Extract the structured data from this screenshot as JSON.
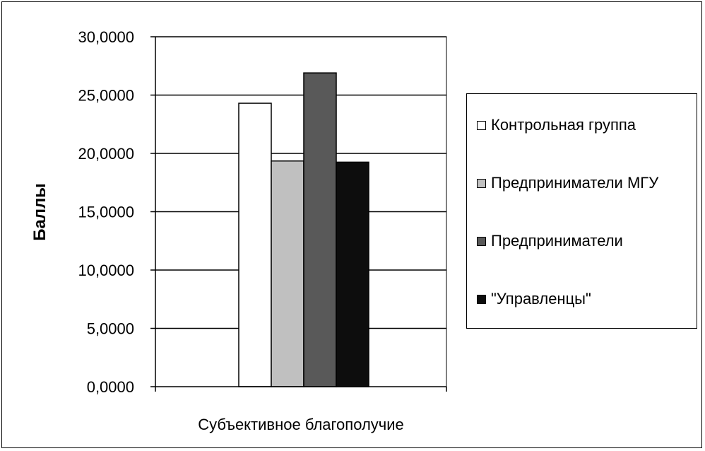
{
  "chart_data": {
    "type": "bar",
    "categories": [
      "Субъективное благополучие"
    ],
    "series": [
      {
        "name": "Контрольная группа",
        "values": [
          24.3
        ],
        "color": "#ffffff"
      },
      {
        "name": "Предприниматели МГУ",
        "values": [
          19.35
        ],
        "color": "#c0c0c0"
      },
      {
        "name": "Предприниматели",
        "values": [
          26.9
        ],
        "color": "#595959"
      },
      {
        "name": "\"Управленцы\"",
        "values": [
          19.25
        ],
        "color": "#0d0d0d"
      }
    ],
    "ylabel": "Баллы",
    "xlabel": "",
    "ylim": [
      0,
      30
    ],
    "yticks": [
      "0,0000",
      "5,0000",
      "10,0000",
      "15,0000",
      "20,0000",
      "25,0000",
      "30,0000"
    ],
    "ytick_values": [
      0,
      5,
      10,
      15,
      20,
      25,
      30
    ],
    "grid": true,
    "legend_position": "right"
  }
}
